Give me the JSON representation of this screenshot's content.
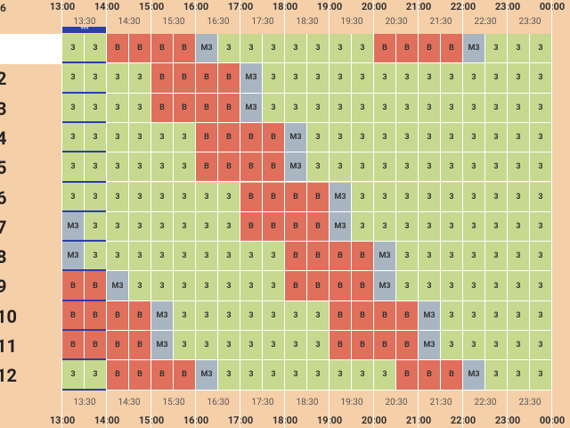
{
  "corner_label": "6",
  "hours": [
    "13:00",
    "14:00",
    "15:00",
    "16:00",
    "17:00",
    "18:00",
    "19:00",
    "20:00",
    "21:00",
    "22:00",
    "23:00",
    "00:00"
  ],
  "half_hours": [
    "13:30",
    "14:30",
    "15:30",
    "16:30",
    "17:30",
    "18:30",
    "19:30",
    "20:30",
    "21:30",
    "22:30",
    "23:30"
  ],
  "marker": "***",
  "cell_colors": {
    "3": "#c6d98f",
    "B": "#e0705c",
    "M3": "#a9b6c2"
  },
  "rows": [
    {
      "label": null,
      "cells": [
        "3",
        "3",
        "B",
        "B",
        "B",
        "B",
        "M3",
        "3",
        "3",
        "3",
        "3",
        "3",
        "3",
        "3",
        "B",
        "B",
        "B",
        "B",
        "M3",
        "3",
        "3",
        "3"
      ]
    },
    {
      "label": "2",
      "cells": [
        "3",
        "3",
        "3",
        "3",
        "B",
        "B",
        "B",
        "B",
        "M3",
        "3",
        "3",
        "3",
        "3",
        "3",
        "3",
        "3",
        "3",
        "3",
        "3",
        "3",
        "3",
        "3"
      ]
    },
    {
      "label": "3",
      "cells": [
        "3",
        "3",
        "3",
        "3",
        "B",
        "B",
        "B",
        "B",
        "M3",
        "3",
        "3",
        "3",
        "3",
        "3",
        "3",
        "3",
        "3",
        "3",
        "3",
        "3",
        "3",
        "3"
      ]
    },
    {
      "label": "4",
      "cells": [
        "3",
        "3",
        "3",
        "3",
        "3",
        "3",
        "B",
        "B",
        "B",
        "B",
        "M3",
        "3",
        "3",
        "3",
        "3",
        "3",
        "3",
        "3",
        "3",
        "3",
        "3",
        "3"
      ]
    },
    {
      "label": "5",
      "cells": [
        "3",
        "3",
        "3",
        "3",
        "3",
        "3",
        "B",
        "B",
        "B",
        "B",
        "M3",
        "3",
        "3",
        "3",
        "3",
        "3",
        "3",
        "3",
        "3",
        "3",
        "3",
        "3"
      ]
    },
    {
      "label": "6",
      "cells": [
        "3",
        "3",
        "3",
        "3",
        "3",
        "3",
        "3",
        "3",
        "B",
        "B",
        "B",
        "B",
        "M3",
        "3",
        "3",
        "3",
        "3",
        "3",
        "3",
        "3",
        "3",
        "3"
      ]
    },
    {
      "label": "7",
      "cells": [
        "M3",
        "3",
        "3",
        "3",
        "3",
        "3",
        "3",
        "3",
        "B",
        "B",
        "B",
        "B",
        "M3",
        "3",
        "3",
        "3",
        "3",
        "3",
        "3",
        "3",
        "3",
        "3"
      ]
    },
    {
      "label": "8",
      "cells": [
        "M3",
        "3",
        "3",
        "3",
        "3",
        "3",
        "3",
        "3",
        "3",
        "3",
        "B",
        "B",
        "B",
        "B",
        "M3",
        "3",
        "3",
        "3",
        "3",
        "3",
        "3",
        "3"
      ]
    },
    {
      "label": "9",
      "cells": [
        "B",
        "B",
        "M3",
        "3",
        "3",
        "3",
        "3",
        "3",
        "3",
        "3",
        "B",
        "B",
        "B",
        "B",
        "M3",
        "3",
        "3",
        "3",
        "3",
        "3",
        "3",
        "3"
      ]
    },
    {
      "label": "10",
      "cells": [
        "B",
        "B",
        "B",
        "B",
        "M3",
        "3",
        "3",
        "3",
        "3",
        "3",
        "3",
        "3",
        "B",
        "B",
        "B",
        "B",
        "M3",
        "3",
        "3",
        "3",
        "3",
        "3"
      ]
    },
    {
      "label": "11",
      "cells": [
        "B",
        "B",
        "B",
        "B",
        "M3",
        "3",
        "3",
        "3",
        "3",
        "3",
        "3",
        "3",
        "B",
        "B",
        "B",
        "B",
        "M3",
        "3",
        "3",
        "3",
        "3",
        "3"
      ]
    },
    {
      "label": "12",
      "cells": [
        "3",
        "3",
        "B",
        "B",
        "B",
        "B",
        "M3",
        "3",
        "3",
        "3",
        "3",
        "3",
        "3",
        "3",
        "3",
        "B",
        "B",
        "B",
        "M3",
        "3",
        "3",
        "3"
      ]
    }
  ]
}
